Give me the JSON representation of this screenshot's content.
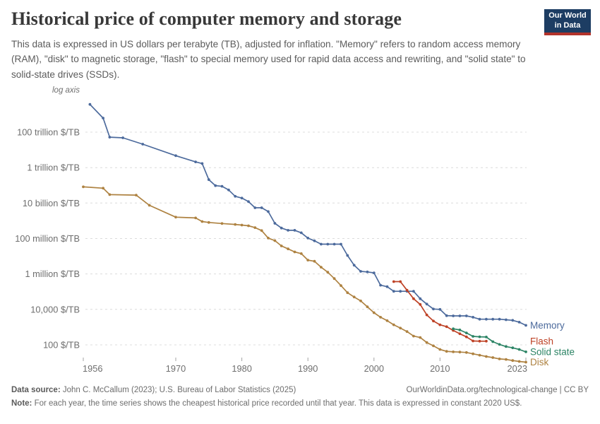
{
  "header": {
    "title": "Historical price of computer memory and storage",
    "subtitle": "This data is expressed in US dollars per terabyte (TB), adjusted for inflation. \"Memory\" refers to random access memory (RAM), \"disk\" to magnetic storage, \"flash\" to special memory used for rapid data access and rewriting, and \"solid state\" to solid-state drives (SSDs)."
  },
  "logo": {
    "line1": "Our World",
    "line2": "in Data",
    "bg_color": "#1d3d63",
    "bar_color": "#b2332b"
  },
  "chart_data": {
    "type": "line",
    "title": "Historical price of computer memory and storage",
    "log_axis_label": "log axis",
    "unit": "$/TB",
    "grid": true,
    "legend_position": "right of line ends",
    "x_range": [
      1956,
      2023
    ],
    "x_ticks": [
      1956,
      1970,
      1980,
      1990,
      2000,
      2010,
      2023
    ],
    "y_axis": {
      "scale": "log",
      "ticks": [
        {
          "label": "100 trillion $/TB",
          "value": 100000000000000.0
        },
        {
          "label": "1 trillion $/TB",
          "value": 1000000000000.0
        },
        {
          "label": "10 billion $/TB",
          "value": 10000000000.0
        },
        {
          "label": "100 million $/TB",
          "value": 100000000.0
        },
        {
          "label": "1 million $/TB",
          "value": 1000000.0
        },
        {
          "label": "10,000 $/TB",
          "value": 10000.0
        },
        {
          "label": "100 $/TB",
          "value": 100.0
        }
      ]
    },
    "series": [
      {
        "name": "Memory",
        "color": "#4C6A9C",
        "points": [
          [
            1957,
            3700000000000000.0
          ],
          [
            1959,
            620000000000000.0
          ],
          [
            1960,
            52000000000000.0
          ],
          [
            1962,
            48000000000000.0
          ],
          [
            1965,
            21000000000000.0
          ],
          [
            1970,
            4700000000000.0
          ],
          [
            1973,
            2100000000000.0
          ],
          [
            1974,
            1700000000000.0
          ],
          [
            1975,
            210000000000.0
          ],
          [
            1976,
            96000000000.0
          ],
          [
            1977,
            88000000000.0
          ],
          [
            1978,
            55000000000.0
          ],
          [
            1979,
            24000000000.0
          ],
          [
            1980,
            19000000000.0
          ],
          [
            1981,
            12000000000.0
          ],
          [
            1982,
            5400000000.0
          ],
          [
            1983,
            5400000000.0
          ],
          [
            1984,
            3300000000.0
          ],
          [
            1985,
            720000000.0
          ],
          [
            1986,
            390000000.0
          ],
          [
            1987,
            290000000.0
          ],
          [
            1988,
            290000000.0
          ],
          [
            1989,
            210000000.0
          ],
          [
            1990,
            105000000.0
          ],
          [
            1991,
            74000000.0
          ],
          [
            1992,
            48000000.0
          ],
          [
            1993,
            48000000.0
          ],
          [
            1994,
            48000000.0
          ],
          [
            1995,
            48000000.0
          ],
          [
            1996,
            11000000.0
          ],
          [
            1997,
            3100000.0
          ],
          [
            1998,
            1400000.0
          ],
          [
            1999,
            1300000.0
          ],
          [
            2000,
            1150000.0
          ],
          [
            2001,
            230000.0
          ],
          [
            2002,
            190000.0
          ],
          [
            2003,
            105000.0
          ],
          [
            2004,
            105000.0
          ],
          [
            2005,
            105000.0
          ],
          [
            2006,
            105000.0
          ],
          [
            2007,
            40000.0
          ],
          [
            2008,
            20000.0
          ],
          [
            2009,
            10500.0
          ],
          [
            2010,
            10000.0
          ],
          [
            2011,
            4400.0
          ],
          [
            2012,
            4300.0
          ],
          [
            2013,
            4300.0
          ],
          [
            2014,
            4300.0
          ],
          [
            2015,
            3600.0
          ],
          [
            2016,
            2800.0
          ],
          [
            2017,
            2800.0
          ],
          [
            2018,
            2800.0
          ],
          [
            2019,
            2800.0
          ],
          [
            2020,
            2600.0
          ],
          [
            2021,
            2400.0
          ],
          [
            2022,
            1900.0
          ],
          [
            2023,
            1250.0
          ]
        ]
      },
      {
        "name": "Disk",
        "color": "#AE8241",
        "points": [
          [
            1956,
            82000000000.0
          ],
          [
            1959,
            69000000000.0
          ],
          [
            1960,
            30000000000.0
          ],
          [
            1964,
            28000000000.0
          ],
          [
            1966,
            7500000000.0
          ],
          [
            1970,
            1600000000.0
          ],
          [
            1973,
            1450000000.0
          ],
          [
            1974,
            900000000.0
          ],
          [
            1975,
            800000000.0
          ],
          [
            1977,
            700000000.0
          ],
          [
            1979,
            620000000.0
          ],
          [
            1980,
            570000000.0
          ],
          [
            1981,
            520000000.0
          ],
          [
            1982,
            410000000.0
          ],
          [
            1983,
            280000000.0
          ],
          [
            1984,
            105000000.0
          ],
          [
            1985,
            76000000.0
          ],
          [
            1986,
            38000000.0
          ],
          [
            1987,
            26000000.0
          ],
          [
            1988,
            17500000.0
          ],
          [
            1989,
            14000000.0
          ],
          [
            1990,
            6000000.0
          ],
          [
            1991,
            5200000.0
          ],
          [
            1992,
            2400000.0
          ],
          [
            1993,
            1250000.0
          ],
          [
            1994,
            550000.0
          ],
          [
            1995,
            220000.0
          ],
          [
            1996,
            87000.0
          ],
          [
            1997,
            50000.0
          ],
          [
            1998,
            30000.0
          ],
          [
            1999,
            14000.0
          ],
          [
            2000,
            6500.0
          ],
          [
            2001,
            3600.0
          ],
          [
            2002,
            2300.0
          ],
          [
            2003,
            1350.0
          ],
          [
            2004,
            880.0
          ],
          [
            2005,
            560.0
          ],
          [
            2006,
            310.0
          ],
          [
            2007,
            260.0
          ],
          [
            2008,
            135.0
          ],
          [
            2009,
            88
          ],
          [
            2010,
            55
          ],
          [
            2011,
            43
          ],
          [
            2012,
            40
          ],
          [
            2013,
            39
          ],
          [
            2014,
            37
          ],
          [
            2015,
            31
          ],
          [
            2016,
            26
          ],
          [
            2017,
            22
          ],
          [
            2018,
            19
          ],
          [
            2019,
            16
          ],
          [
            2020,
            15
          ],
          [
            2021,
            13
          ],
          [
            2022,
            11.5
          ],
          [
            2023,
            10.5
          ]
        ]
      },
      {
        "name": "Flash",
        "color": "#BE4226",
        "points": [
          [
            2003,
            370000.0
          ],
          [
            2004,
            370000.0
          ],
          [
            2005,
            120000.0
          ],
          [
            2006,
            40000.0
          ],
          [
            2007,
            19000.0
          ],
          [
            2008,
            4900.0
          ],
          [
            2009,
            2200.0
          ],
          [
            2010,
            1350.0
          ],
          [
            2011,
            1050.0
          ],
          [
            2012,
            650.0
          ],
          [
            2013,
            420.0
          ],
          [
            2014,
            280.0
          ],
          [
            2015,
            165.0
          ],
          [
            2016,
            160.0
          ],
          [
            2017,
            160.0
          ]
        ]
      },
      {
        "name": "Solid state",
        "color": "#2C8465",
        "points": [
          [
            2012,
            800.0
          ],
          [
            2013,
            690.0
          ],
          [
            2014,
            470.0
          ],
          [
            2015,
            300.0
          ],
          [
            2016,
            285.0
          ],
          [
            2017,
            275.0
          ],
          [
            2018,
            150.0
          ],
          [
            2019,
            105.0
          ],
          [
            2020,
            80
          ],
          [
            2021,
            68
          ],
          [
            2022,
            55
          ],
          [
            2023,
            40
          ]
        ]
      }
    ]
  },
  "footer": {
    "datasource_label": "Data source:",
    "datasource_text": "John C. McCallum (2023); U.S. Bureau of Labor Statistics (2025)",
    "right_text": "OurWorldinData.org/technological-change | CC BY",
    "note_label": "Note:",
    "note_text": "For each year, the time series shows the cheapest historical price recorded until that year. This data is expressed in constant 2020 US$."
  }
}
